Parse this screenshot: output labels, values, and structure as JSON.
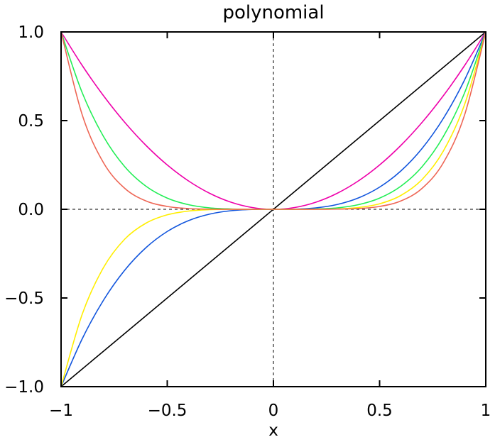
{
  "chart_data": {
    "type": "line",
    "title": "polynomial",
    "xlabel": "x",
    "ylabel": "",
    "xlim": [
      -1,
      1
    ],
    "ylim": [
      -1,
      1
    ],
    "x_ticks": [
      -1,
      -0.5,
      0,
      0.5,
      1
    ],
    "x_tick_labels": [
      "−1",
      "−0.5",
      "0",
      "0.5",
      "1"
    ],
    "y_ticks": [
      -1,
      -0.5,
      0,
      0.5,
      1
    ],
    "y_tick_labels": [
      "−1.0",
      "−0.5",
      "0.0",
      "0.5",
      "1.0"
    ],
    "grid": false,
    "reference_lines": [
      {
        "axis": "x",
        "value": 0,
        "style": "dashed"
      },
      {
        "axis": "y",
        "value": 0,
        "style": "dashed"
      }
    ],
    "x": [
      -1,
      -0.9,
      -0.8,
      -0.7,
      -0.6,
      -0.5,
      -0.4,
      -0.3,
      -0.2,
      -0.1,
      0,
      0.1,
      0.2,
      0.3,
      0.4,
      0.5,
      0.6,
      0.7,
      0.8,
      0.9,
      1
    ],
    "series": [
      {
        "color": "#000000",
        "values": [
          -1,
          -0.9,
          -0.8,
          -0.7,
          -0.6,
          -0.5,
          -0.4,
          -0.3,
          -0.2,
          -0.1,
          0,
          0.1,
          0.2,
          0.3,
          0.4,
          0.5,
          0.6,
          0.7,
          0.8,
          0.9,
          1
        ]
      },
      {
        "color": "#ee00aa",
        "values": [
          1,
          0.81,
          0.64,
          0.49,
          0.36,
          0.25,
          0.16,
          0.09,
          0.04,
          0.01,
          0,
          0.01,
          0.04,
          0.09,
          0.16,
          0.25,
          0.36,
          0.49,
          0.64,
          0.81,
          1
        ]
      },
      {
        "color": "#1155dd",
        "values": [
          -1,
          -0.729,
          -0.512,
          -0.343,
          -0.216,
          -0.125,
          -0.064,
          -0.027,
          -0.008,
          -0.001,
          0,
          0.001,
          0.008,
          0.027,
          0.064,
          0.125,
          0.216,
          0.343,
          0.512,
          0.729,
          1
        ]
      },
      {
        "color": "#22ee55",
        "values": [
          1,
          0.656,
          0.41,
          0.24,
          0.13,
          0.063,
          0.026,
          0.008,
          0.002,
          0,
          0,
          0,
          0.002,
          0.008,
          0.026,
          0.063,
          0.13,
          0.24,
          0.41,
          0.656,
          1
        ]
      },
      {
        "color": "#ffee00",
        "values": [
          -1,
          -0.59,
          -0.328,
          -0.168,
          -0.078,
          -0.031,
          -0.01,
          -0.002,
          0,
          0,
          0,
          0,
          0,
          0.002,
          0.01,
          0.031,
          0.078,
          0.168,
          0.328,
          0.59,
          1
        ]
      },
      {
        "color": "#ee6655",
        "values": [
          1,
          0.531,
          0.262,
          0.118,
          0.047,
          0.016,
          0.004,
          0.001,
          0,
          0,
          0,
          0,
          0,
          0.001,
          0.004,
          0.016,
          0.047,
          0.118,
          0.262,
          0.531,
          1
        ]
      }
    ]
  }
}
